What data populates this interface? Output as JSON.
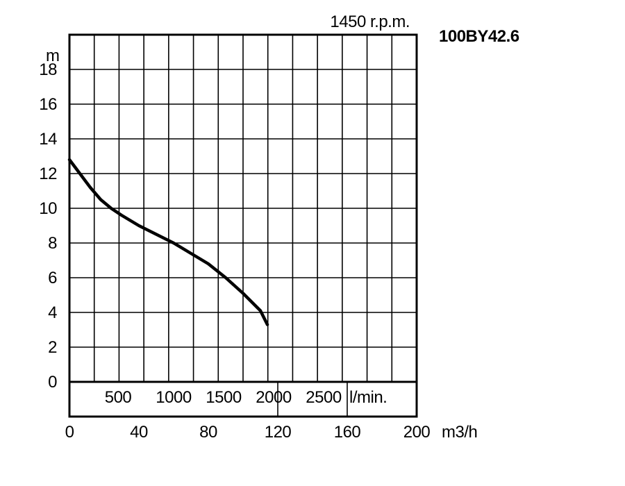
{
  "chart_data": {
    "type": "line",
    "title": "100BY42.6",
    "subtitle": "1450 r.p.m.",
    "ylabel": "m",
    "xlabel": "m3/h",
    "ylim": [
      0,
      20
    ],
    "xlim": [
      0,
      200
    ],
    "y_ticks": [
      "0",
      "2",
      "4",
      "6",
      "8",
      "10",
      "12",
      "14",
      "16",
      "18"
    ],
    "x_ticks": [
      "0",
      "40",
      "80",
      "120",
      "160",
      "200"
    ],
    "secondary_x": {
      "unit": "l/min.",
      "ticks": [
        "500",
        "1000",
        "1500",
        "2000",
        "2500"
      ]
    },
    "grid": true,
    "series": [
      {
        "x": [
          0,
          6,
          12,
          18,
          24,
          30,
          40,
          50,
          60,
          70,
          80,
          90,
          100,
          110,
          114
        ],
        "y": [
          12.8,
          12.0,
          11.2,
          10.5,
          10.0,
          9.6,
          9.0,
          8.5,
          8.0,
          7.4,
          6.8,
          6.0,
          5.1,
          4.1,
          3.3
        ]
      }
    ]
  }
}
